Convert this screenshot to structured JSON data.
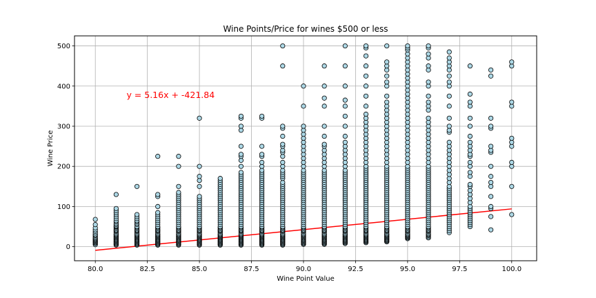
{
  "chart_data": {
    "type": "scatter",
    "title": "Wine Points/Price for wines $500 or less",
    "xlabel": "Wine Point Value",
    "ylabel": "Wine Price",
    "xlim": [
      79.0,
      101.2
    ],
    "ylim": [
      -35,
      525
    ],
    "x_ticks": [
      80.0,
      82.5,
      85.0,
      87.5,
      90.0,
      92.5,
      95.0,
      97.5,
      100.0
    ],
    "x_tick_labels": [
      "80.0",
      "82.5",
      "85.0",
      "87.5",
      "90.0",
      "92.5",
      "95.0",
      "97.5",
      "100.0"
    ],
    "y_ticks": [
      0,
      100,
      200,
      300,
      400,
      500
    ],
    "y_tick_labels": [
      "0",
      "100",
      "200",
      "300",
      "400",
      "500"
    ],
    "grid": true,
    "marker_color": "#add8e6",
    "marker_edge_color": "#000000",
    "regression": {
      "slope": 5.16,
      "intercept": -421.84,
      "x_range": [
        80,
        100
      ],
      "color": "#ff0000",
      "annotation": "y = 5.16x + -421.84",
      "annotation_position": [
        81.5,
        370
      ]
    },
    "points": [
      {
        "x": 80,
        "y": [
          5,
          8,
          10,
          12,
          14,
          16,
          18,
          20,
          22,
          25,
          28,
          30,
          34,
          38,
          42,
          47,
          55,
          68
        ]
      },
      {
        "x": 81,
        "y": [
          4,
          6,
          8,
          10,
          12,
          14,
          16,
          18,
          20,
          22,
          24,
          26,
          28,
          30,
          32,
          35,
          38,
          40,
          42,
          45,
          48,
          50,
          52,
          55,
          58,
          62,
          65,
          70,
          75,
          80,
          85,
          90,
          95,
          130
        ]
      },
      {
        "x": 82,
        "y": [
          4,
          6,
          8,
          10,
          12,
          14,
          16,
          18,
          20,
          22,
          24,
          26,
          28,
          30,
          32,
          35,
          38,
          40,
          42,
          45,
          48,
          50,
          55,
          58,
          62,
          65,
          70,
          75,
          80,
          150
        ]
      },
      {
        "x": 83,
        "y": [
          4,
          6,
          8,
          10,
          12,
          14,
          16,
          18,
          20,
          22,
          24,
          26,
          28,
          30,
          32,
          35,
          38,
          40,
          42,
          45,
          48,
          50,
          55,
          60,
          65,
          70,
          75,
          80,
          85,
          100,
          125,
          130,
          225
        ]
      },
      {
        "x": 84,
        "y": [
          4,
          6,
          8,
          10,
          12,
          14,
          16,
          18,
          20,
          22,
          24,
          26,
          28,
          30,
          32,
          35,
          38,
          40,
          42,
          45,
          48,
          50,
          55,
          60,
          65,
          70,
          75,
          80,
          85,
          90,
          95,
          100,
          105,
          110,
          115,
          120,
          125,
          130,
          135,
          150,
          200,
          225
        ]
      },
      {
        "x": 85,
        "y": [
          4,
          6,
          8,
          10,
          12,
          14,
          16,
          18,
          20,
          22,
          24,
          26,
          28,
          30,
          32,
          35,
          38,
          40,
          42,
          45,
          48,
          50,
          55,
          60,
          65,
          70,
          75,
          80,
          85,
          90,
          95,
          100,
          105,
          110,
          115,
          120,
          125,
          150,
          165,
          175,
          200,
          320
        ]
      },
      {
        "x": 86,
        "y": [
          4,
          6,
          8,
          10,
          12,
          14,
          16,
          18,
          20,
          22,
          24,
          26,
          28,
          30,
          32,
          35,
          38,
          40,
          42,
          45,
          48,
          50,
          55,
          60,
          65,
          70,
          75,
          80,
          85,
          90,
          95,
          100,
          105,
          110,
          115,
          120,
          125,
          130,
          135,
          140,
          145,
          150,
          155,
          160,
          165,
          170
        ]
      },
      {
        "x": 87,
        "y": [
          4,
          6,
          8,
          10,
          12,
          14,
          16,
          18,
          20,
          22,
          24,
          26,
          28,
          30,
          32,
          35,
          38,
          40,
          42,
          45,
          48,
          50,
          55,
          60,
          65,
          70,
          75,
          80,
          85,
          90,
          95,
          100,
          105,
          110,
          115,
          120,
          125,
          130,
          135,
          140,
          145,
          150,
          155,
          160,
          165,
          170,
          175,
          180,
          185,
          200,
          215,
          225,
          230,
          250,
          290,
          300,
          320,
          325
        ]
      },
      {
        "x": 88,
        "y": [
          4,
          6,
          8,
          10,
          12,
          14,
          16,
          18,
          20,
          22,
          24,
          26,
          28,
          30,
          32,
          35,
          38,
          40,
          42,
          45,
          48,
          50,
          55,
          60,
          65,
          70,
          75,
          80,
          85,
          90,
          95,
          100,
          105,
          110,
          115,
          120,
          125,
          130,
          135,
          140,
          145,
          150,
          155,
          160,
          165,
          170,
          175,
          180,
          185,
          190,
          200,
          210,
          225,
          230,
          250,
          320,
          325
        ]
      },
      {
        "x": 89,
        "y": [
          4,
          6,
          8,
          10,
          12,
          14,
          16,
          18,
          20,
          22,
          24,
          26,
          28,
          30,
          32,
          35,
          38,
          40,
          42,
          45,
          48,
          50,
          55,
          60,
          65,
          70,
          75,
          80,
          85,
          90,
          95,
          100,
          105,
          110,
          115,
          120,
          125,
          130,
          135,
          140,
          145,
          150,
          155,
          160,
          170,
          175,
          180,
          185,
          190,
          200,
          210,
          225,
          235,
          240,
          250,
          255,
          275,
          295,
          300,
          450,
          500
        ]
      },
      {
        "x": 90,
        "y": [
          6,
          8,
          10,
          12,
          14,
          16,
          18,
          20,
          22,
          24,
          26,
          28,
          30,
          32,
          35,
          38,
          40,
          42,
          45,
          48,
          50,
          55,
          60,
          65,
          70,
          75,
          80,
          85,
          90,
          95,
          100,
          105,
          110,
          115,
          120,
          125,
          130,
          135,
          140,
          145,
          150,
          155,
          160,
          165,
          170,
          175,
          180,
          185,
          190,
          200,
          210,
          220,
          230,
          240,
          250,
          260,
          270,
          280,
          290,
          300,
          350,
          400
        ]
      },
      {
        "x": 91,
        "y": [
          6,
          8,
          10,
          12,
          14,
          16,
          18,
          20,
          22,
          24,
          26,
          28,
          30,
          32,
          35,
          38,
          40,
          42,
          45,
          48,
          50,
          55,
          60,
          65,
          70,
          75,
          80,
          85,
          90,
          95,
          100,
          105,
          110,
          115,
          120,
          125,
          130,
          135,
          140,
          145,
          150,
          155,
          160,
          165,
          170,
          175,
          180,
          185,
          190,
          200,
          210,
          220,
          230,
          240,
          250,
          255,
          275,
          300,
          350,
          370,
          400,
          450
        ]
      },
      {
        "x": 92,
        "y": [
          8,
          10,
          12,
          14,
          16,
          18,
          20,
          22,
          24,
          26,
          28,
          30,
          32,
          35,
          38,
          40,
          42,
          45,
          48,
          50,
          55,
          60,
          65,
          70,
          75,
          80,
          85,
          90,
          95,
          100,
          105,
          110,
          115,
          120,
          125,
          130,
          135,
          140,
          145,
          150,
          155,
          160,
          165,
          170,
          175,
          180,
          185,
          190,
          200,
          210,
          220,
          230,
          240,
          250,
          260,
          275,
          300,
          325,
          350,
          365,
          400,
          450,
          500
        ]
      },
      {
        "x": 93,
        "y": [
          10,
          12,
          14,
          16,
          18,
          20,
          22,
          24,
          26,
          28,
          30,
          32,
          35,
          38,
          40,
          42,
          45,
          48,
          50,
          55,
          60,
          65,
          70,
          75,
          80,
          85,
          90,
          95,
          100,
          105,
          110,
          115,
          120,
          125,
          130,
          135,
          140,
          145,
          150,
          155,
          160,
          165,
          170,
          175,
          180,
          185,
          190,
          195,
          200,
          210,
          220,
          230,
          240,
          250,
          260,
          270,
          280,
          290,
          300,
          310,
          320,
          330,
          350,
          375,
          400,
          425,
          450,
          475,
          495,
          500
        ]
      },
      {
        "x": 94,
        "y": [
          12,
          14,
          16,
          18,
          20,
          22,
          24,
          26,
          28,
          30,
          32,
          35,
          38,
          40,
          42,
          45,
          48,
          50,
          55,
          60,
          65,
          70,
          75,
          80,
          85,
          90,
          95,
          100,
          105,
          110,
          115,
          120,
          125,
          130,
          135,
          140,
          145,
          150,
          155,
          160,
          165,
          170,
          175,
          180,
          185,
          190,
          195,
          200,
          210,
          220,
          230,
          240,
          250,
          260,
          270,
          280,
          290,
          300,
          310,
          320,
          330,
          340,
          350,
          360,
          375,
          400,
          410,
          425,
          440,
          450,
          460,
          500
        ]
      },
      {
        "x": 95,
        "y": [
          20,
          22,
          24,
          26,
          28,
          30,
          32,
          35,
          38,
          40,
          42,
          45,
          48,
          50,
          55,
          60,
          65,
          70,
          75,
          80,
          85,
          90,
          95,
          100,
          105,
          110,
          115,
          120,
          125,
          130,
          135,
          140,
          145,
          150,
          155,
          160,
          165,
          170,
          175,
          180,
          185,
          190,
          195,
          200,
          210,
          220,
          230,
          240,
          250,
          260,
          270,
          280,
          290,
          300,
          310,
          320,
          330,
          340,
          350,
          360,
          370,
          380,
          390,
          400,
          410,
          420,
          430,
          440,
          450,
          460,
          470,
          480,
          490,
          495,
          500
        ]
      },
      {
        "x": 96,
        "y": [
          22,
          25,
          28,
          30,
          32,
          35,
          38,
          40,
          42,
          45,
          48,
          50,
          55,
          60,
          65,
          70,
          75,
          80,
          85,
          90,
          95,
          100,
          105,
          110,
          115,
          120,
          125,
          130,
          135,
          140,
          145,
          150,
          155,
          160,
          165,
          170,
          175,
          180,
          185,
          190,
          195,
          200,
          210,
          220,
          230,
          240,
          250,
          260,
          270,
          280,
          290,
          300,
          310,
          320,
          340,
          350,
          360,
          375,
          400,
          410,
          440,
          450,
          470,
          480,
          495,
          500
        ]
      },
      {
        "x": 97,
        "y": [
          35,
          40,
          45,
          50,
          55,
          60,
          65,
          70,
          75,
          80,
          85,
          90,
          95,
          100,
          105,
          110,
          115,
          120,
          125,
          130,
          135,
          140,
          145,
          150,
          160,
          170,
          180,
          190,
          200,
          210,
          220,
          230,
          240,
          250,
          260,
          285,
          290,
          300,
          320,
          350,
          375,
          400,
          410,
          425,
          440,
          450,
          460,
          470,
          485
        ]
      },
      {
        "x": 98,
        "y": [
          50,
          55,
          60,
          65,
          70,
          75,
          80,
          85,
          90,
          95,
          100,
          110,
          120,
          130,
          140,
          150,
          155,
          175,
          185,
          200,
          210,
          225,
          230,
          240,
          250,
          260,
          275,
          300,
          320,
          350,
          360,
          380,
          450
        ]
      },
      {
        "x": 99,
        "y": [
          42,
          75,
          95,
          100,
          125,
          150,
          160,
          175,
          200,
          235,
          240,
          250,
          295,
          300,
          320,
          425,
          440
        ]
      },
      {
        "x": 100,
        "y": [
          80,
          150,
          200,
          210,
          250,
          260,
          270,
          350,
          360,
          450,
          460
        ]
      }
    ]
  }
}
